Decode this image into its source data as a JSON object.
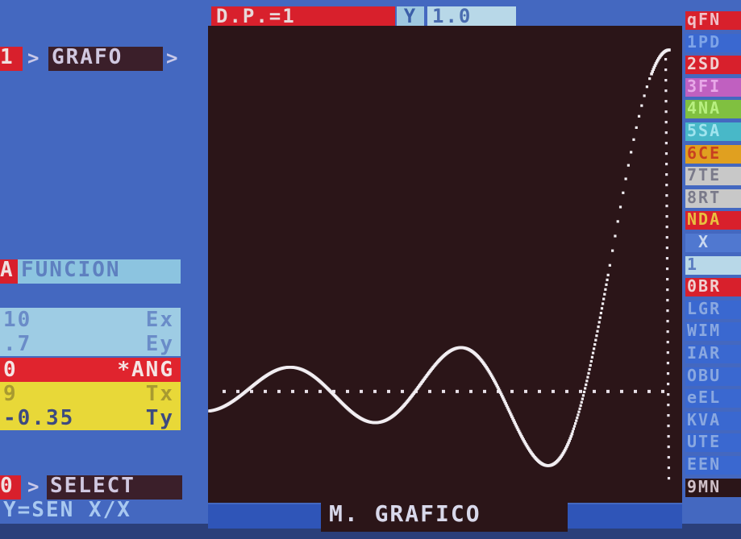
{
  "top_bar": {
    "dp": "D.P.=1",
    "axis": "Y",
    "scale": "1.0"
  },
  "left_panel": {
    "prog_num": "1",
    "prog_name": "GRAFO",
    "fn_key": "A",
    "fn_label": "FUNCION",
    "params": [
      {
        "value": "10",
        "label": "Ex"
      },
      {
        "value": ".7",
        "label": "Ey"
      },
      {
        "value": "0",
        "label": "*ANG"
      },
      {
        "value": "9",
        "label": "Tx"
      },
      {
        "value": "-0.35",
        "label": "Ty"
      }
    ],
    "select_key": "0",
    "select_label": "SELECT",
    "function_text": "Y=SEN X/X"
  },
  "footer": {
    "title": "M. GRAFICO"
  },
  "right_menu": [
    {
      "text": "qFN",
      "bg": "#d8202c",
      "fg": "#f0c0c8"
    },
    {
      "text": "1PD",
      "bg": "#3a68d0",
      "fg": "#7ea4e8"
    },
    {
      "text": "2SD",
      "bg": "#d8202c",
      "fg": "#f0d0d0"
    },
    {
      "text": "3FI",
      "bg": "#c060c0",
      "fg": "#e8a8e8"
    },
    {
      "text": "4NA",
      "bg": "#80c040",
      "fg": "#b8f080"
    },
    {
      "text": "5SA",
      "bg": "#48b8c8",
      "fg": "#a0e4ee"
    },
    {
      "text": "6CE",
      "bg": "#e0a020",
      "fg": "#c84020"
    },
    {
      "text": "7TE",
      "bg": "#c8c8c8",
      "fg": "#7a7a8a"
    },
    {
      "text": "8RT",
      "bg": "#c8c8c8",
      "fg": "#7a7a8a"
    },
    {
      "text": "NDA",
      "bg": "#d8202c",
      "fg": "#e8c040"
    },
    {
      "text": " X",
      "bg": "#5078d0",
      "fg": "#c8d8f0"
    },
    {
      "text": "1",
      "bg": "#b8d8e8",
      "fg": "#5a7cc0"
    },
    {
      "text": "0BR",
      "bg": "#d8202c",
      "fg": "#f0d0d0"
    },
    {
      "text": "LGR",
      "bg": "#3a68d0",
      "fg": "#8aa8e0"
    },
    {
      "text": "WIM",
      "bg": "#3a68d0",
      "fg": "#8aa8e0"
    },
    {
      "text": "IAR",
      "bg": "#3a68d0",
      "fg": "#8aa8e0"
    },
    {
      "text": "OBU",
      "bg": "#3a68d0",
      "fg": "#8aa8e0"
    },
    {
      "text": "eEL",
      "bg": "#3a68d0",
      "fg": "#8aa8e0"
    },
    {
      "text": "KVA",
      "bg": "#3a68d0",
      "fg": "#8aa8e0"
    },
    {
      "text": "UTE",
      "bg": "#3a68d0",
      "fg": "#8aa8e0"
    },
    {
      "text": "EEN",
      "bg": "#3a68d0",
      "fg": "#8aa8e0"
    },
    {
      "text": "9MN",
      "bg": "#2b1518",
      "fg": "#d0c0c8"
    }
  ],
  "chart_data": {
    "type": "line",
    "function": "Y=SEN X/X",
    "x_range": [
      -3.1,
      30
    ],
    "y_range": [
      -0.35,
      1.15
    ]
  }
}
